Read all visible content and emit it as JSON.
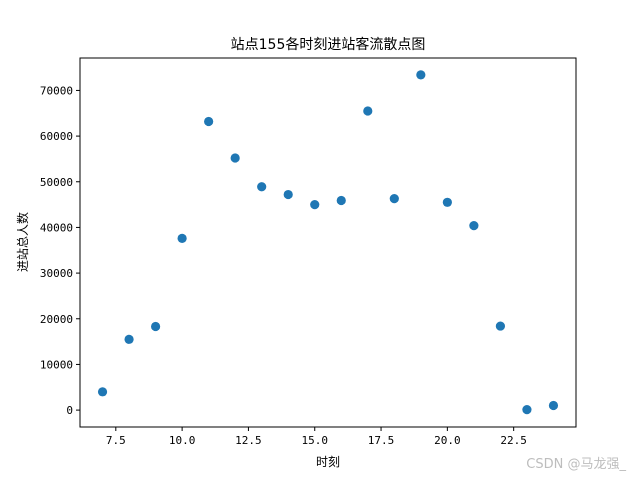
{
  "chart_data": {
    "type": "scatter",
    "title": "站点155各时刻进站客流散点图",
    "xlabel": "时刻",
    "ylabel": "进站总人数",
    "xlim": [
      6.15,
      24.85
    ],
    "ylim": [
      -3700,
      77100
    ],
    "xticks": [
      7.5,
      10.0,
      12.5,
      15.0,
      17.5,
      20.0,
      22.5
    ],
    "xtick_labels": [
      "7.5",
      "10.0",
      "12.5",
      "15.0",
      "17.5",
      "20.0",
      "22.5"
    ],
    "yticks": [
      0,
      10000,
      20000,
      30000,
      40000,
      50000,
      60000,
      70000
    ],
    "ytick_labels": [
      "0",
      "10000",
      "20000",
      "30000",
      "40000",
      "50000",
      "60000",
      "70000"
    ],
    "grid": false,
    "marker_color": "#1f77b4",
    "x": [
      7,
      8,
      9,
      10,
      11,
      12,
      13,
      14,
      15,
      16,
      17,
      18,
      19,
      20,
      21,
      22,
      23,
      24
    ],
    "y": [
      4000,
      15500,
      18300,
      37600,
      63200,
      55200,
      48900,
      47200,
      45000,
      45900,
      65500,
      46300,
      73400,
      45500,
      40400,
      18400,
      100,
      1000
    ]
  },
  "watermark": "CSDN @马龙强_"
}
